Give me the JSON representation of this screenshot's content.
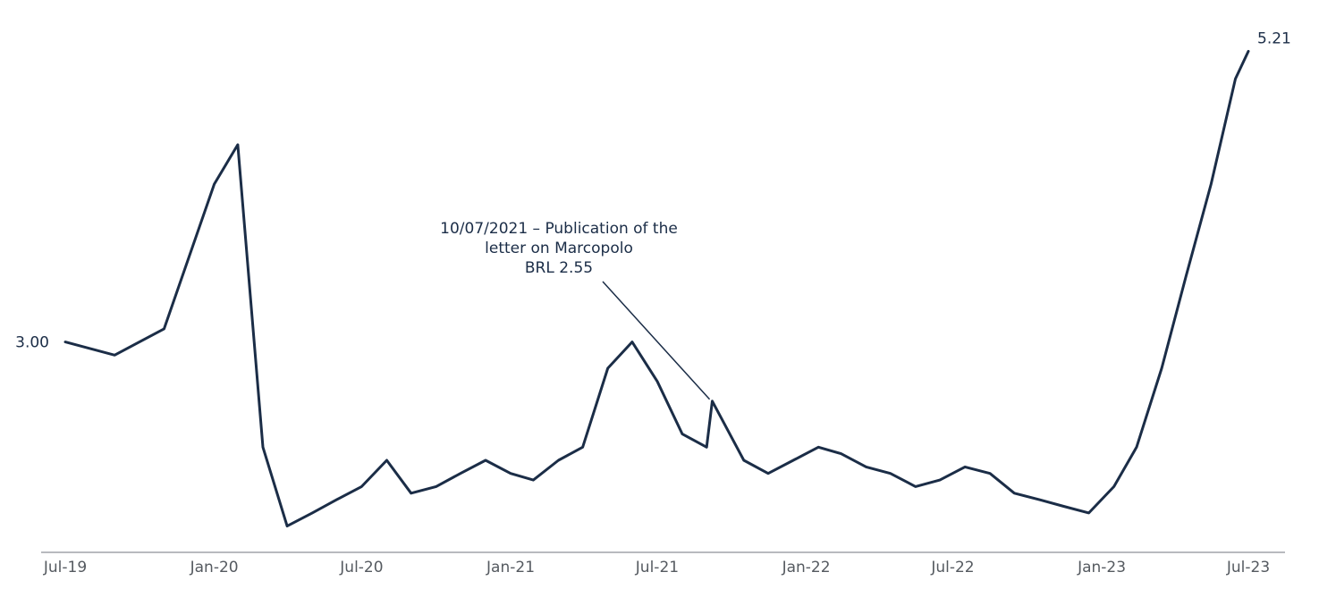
{
  "chart_data": {
    "type": "line",
    "title": "",
    "xlabel": "",
    "ylabel": "",
    "ylim": [
      1.4,
      5.6
    ],
    "grid": false,
    "x_tick_labels": [
      "Jul-19",
      "Jan-20",
      "Jul-20",
      "Jan-21",
      "Jul-21",
      "Jan-22",
      "Jul-22",
      "Jan-23",
      "Jul-23"
    ],
    "start_label": "3.00",
    "end_label": "5.21",
    "annotation": {
      "lines": [
        "10/07/2021 – Publication of the",
        "letter on Marcopolo",
        "BRL 2.55"
      ],
      "x": "2021-10-07",
      "y": 2.55
    },
    "colors": {
      "line": "#1b2d47",
      "axis": "#a0a4a8",
      "tick_text": "#555a60"
    },
    "series": [
      {
        "x": [
          "2019-07-31",
          "2019-09-30",
          "2019-11-30",
          "2020-01-31",
          "2020-02-29",
          "2020-03-31",
          "2020-04-30",
          "2020-05-31",
          "2020-06-30",
          "2020-07-31",
          "2020-08-31",
          "2020-09-30",
          "2020-10-31",
          "2020-11-30",
          "2020-12-31",
          "2021-01-31",
          "2021-02-28",
          "2021-03-31",
          "2021-04-30",
          "2021-05-31",
          "2021-06-30",
          "2021-07-31",
          "2021-08-31",
          "2021-09-30",
          "2021-10-07",
          "2021-11-15",
          "2021-12-15",
          "2022-01-15",
          "2022-02-15",
          "2022-03-15",
          "2022-04-15",
          "2022-05-15",
          "2022-06-15",
          "2022-07-15",
          "2022-08-15",
          "2022-09-15",
          "2022-10-15",
          "2022-11-15",
          "2022-12-15",
          "2023-01-15",
          "2023-02-15",
          "2023-03-15",
          "2023-04-15",
          "2023-05-15",
          "2023-06-15",
          "2023-07-15",
          "2023-07-31"
        ],
        "values": [
          3.0,
          2.9,
          3.1,
          4.2,
          4.5,
          2.2,
          1.6,
          1.7,
          1.8,
          1.9,
          2.1,
          1.85,
          1.9,
          2.0,
          2.1,
          2.0,
          1.95,
          2.1,
          2.2,
          2.8,
          3.0,
          2.7,
          2.3,
          2.2,
          2.55,
          2.1,
          2.0,
          2.1,
          2.2,
          2.15,
          2.05,
          2.0,
          1.9,
          1.95,
          2.05,
          2.0,
          1.85,
          1.8,
          1.75,
          1.7,
          1.9,
          2.2,
          2.8,
          3.5,
          4.2,
          5.0,
          5.21
        ]
      }
    ]
  }
}
